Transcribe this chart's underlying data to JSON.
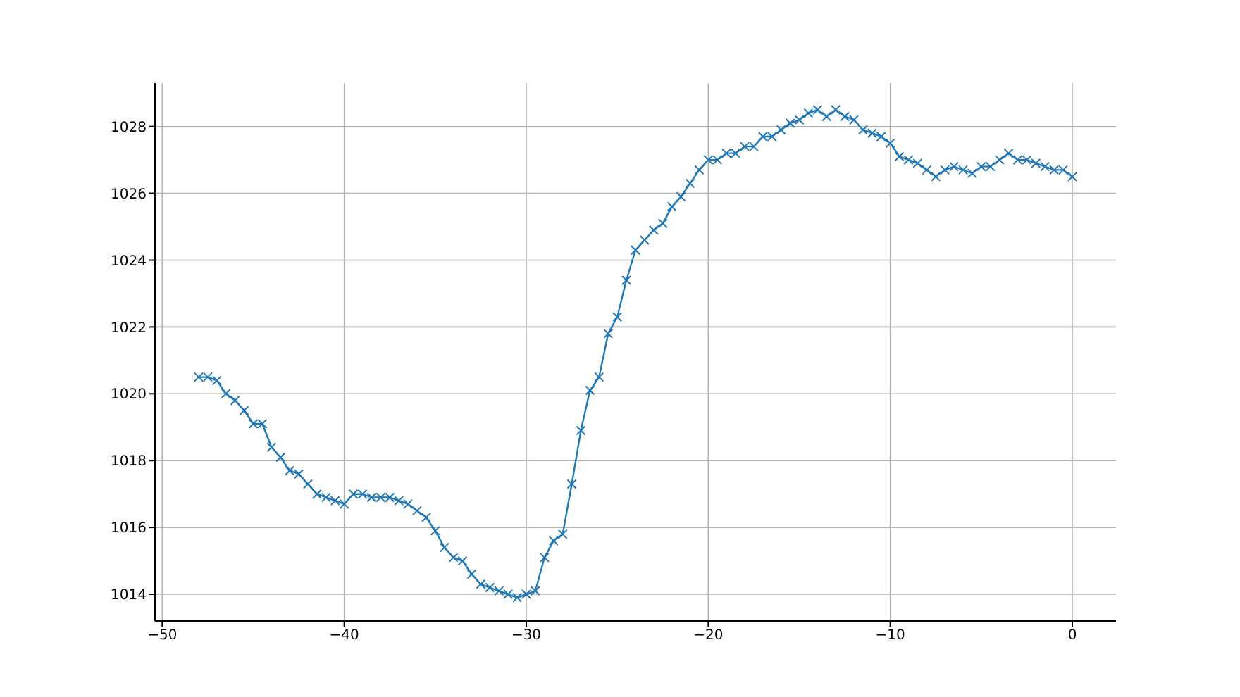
{
  "chart_data": {
    "type": "line",
    "x": [
      -48,
      -47.5,
      -47,
      -46.5,
      -46,
      -45.5,
      -45,
      -44.5,
      -44,
      -43.5,
      -43,
      -42.5,
      -42,
      -41.5,
      -41,
      -40.5,
      -40,
      -39.5,
      -39,
      -38.5,
      -38,
      -37.5,
      -37,
      -36.5,
      -36,
      -35.5,
      -35,
      -34.5,
      -34,
      -33.5,
      -33,
      -32.5,
      -32,
      -31.5,
      -31,
      -30.5,
      -30,
      -29.5,
      -29,
      -28.5,
      -28,
      -27.5,
      -27,
      -26.5,
      -26,
      -25.5,
      -25,
      -24.5,
      -24,
      -23.5,
      -23,
      -22.5,
      -22,
      -21.5,
      -21,
      -20.5,
      -20,
      -19.5,
      -19,
      -18.5,
      -18,
      -17.5,
      -17,
      -16.5,
      -16,
      -15.5,
      -15,
      -14.5,
      -14,
      -13.5,
      -13,
      -12.5,
      -12,
      -11.5,
      -11,
      -10.5,
      -10,
      -9.5,
      -9,
      -8.5,
      -8,
      -7.5,
      -7,
      -6.5,
      -6,
      -5.5,
      -5,
      -4.5,
      -4,
      -3.5,
      -3,
      -2.5,
      -2,
      -1.5,
      -1,
      -0.5,
      0
    ],
    "series": [
      {
        "color": "#1f77b4",
        "values": [
          1020.5,
          1020.5,
          1020.4,
          1020.0,
          1019.8,
          1019.5,
          1019.1,
          1019.1,
          1018.4,
          1018.1,
          1017.7,
          1017.6,
          1017.3,
          1017.0,
          1016.9,
          1016.8,
          1016.7,
          1017.0,
          1017.0,
          1016.9,
          1016.9,
          1016.9,
          1016.8,
          1016.7,
          1016.5,
          1016.3,
          1015.9,
          1015.4,
          1015.1,
          1015.0,
          1014.6,
          1014.3,
          1014.2,
          1014.1,
          1014.0,
          1013.9,
          1014.0,
          1014.1,
          1015.1,
          1015.6,
          1015.8,
          1017.3,
          1018.9,
          1020.1,
          1020.5,
          1021.8,
          1022.3,
          1023.4,
          1024.3,
          1024.6,
          1024.9,
          1025.1,
          1025.6,
          1025.9,
          1026.3,
          1026.7,
          1027.0,
          1027.0,
          1027.2,
          1027.2,
          1027.4,
          1027.4,
          1027.7,
          1027.7,
          1027.9,
          1028.1,
          1028.2,
          1028.4,
          1028.5,
          1028.3,
          1028.5,
          1028.3,
          1028.2,
          1027.9,
          1027.8,
          1027.7,
          1027.5,
          1027.1,
          1027.0,
          1026.9,
          1026.7,
          1026.5,
          1026.7,
          1026.8,
          1026.7,
          1026.6,
          1026.8,
          1026.8,
          1027.0,
          1027.2,
          1027.0,
          1027.0,
          1026.9,
          1026.8,
          1026.7,
          1026.7,
          1026.5
        ]
      }
    ],
    "xlim": [
      -50.4,
      2.4
    ],
    "xticks": [
      -50,
      -40,
      -30,
      -20,
      -10,
      0
    ],
    "ylim": [
      1013.2,
      1029.3
    ],
    "yticks": [
      1014,
      1016,
      1018,
      1020,
      1022,
      1024,
      1026,
      1028
    ],
    "grid": true,
    "marker": "cross",
    "line_style": "solid"
  }
}
